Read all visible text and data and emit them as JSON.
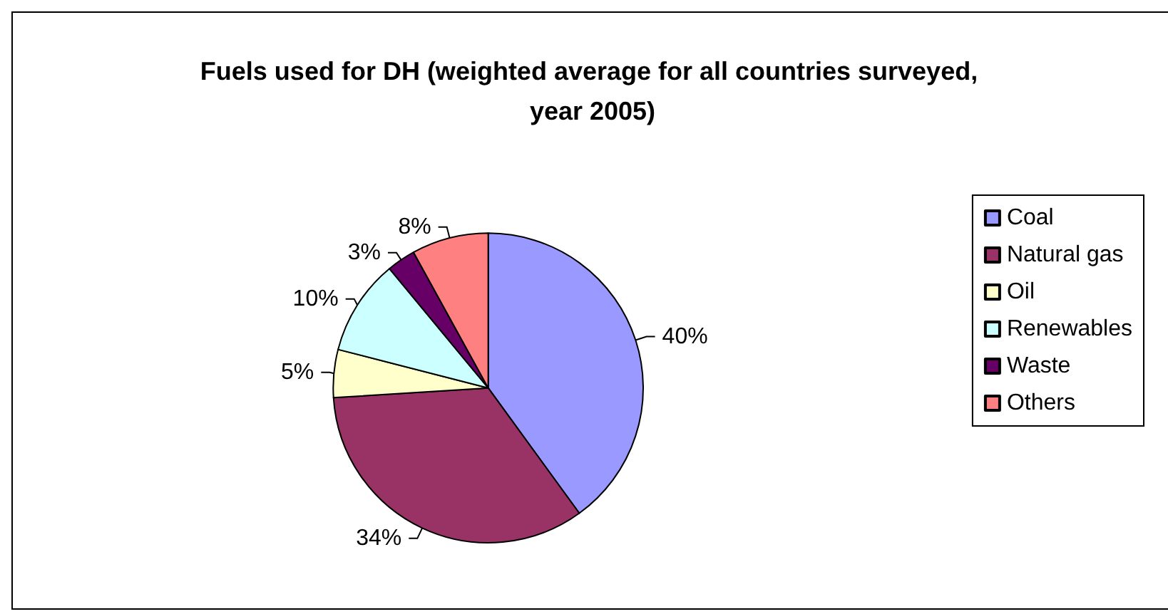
{
  "chart_data": {
    "type": "pie",
    "title": "Fuels used for DH (weighted average for all countries surveyed, year 2005)",
    "categories": [
      "Coal",
      "Natural gas",
      "Oil",
      "Renewables",
      "Waste",
      "Others"
    ],
    "values": [
      40,
      34,
      5,
      10,
      3,
      8
    ],
    "colors": [
      "#9999ff",
      "#993366",
      "#ffffcc",
      "#ccffff",
      "#660066",
      "#ff8080"
    ],
    "value_labels": [
      "40%",
      "34%",
      "5%",
      "10%",
      "3%",
      "8%"
    ],
    "legend": "right"
  }
}
